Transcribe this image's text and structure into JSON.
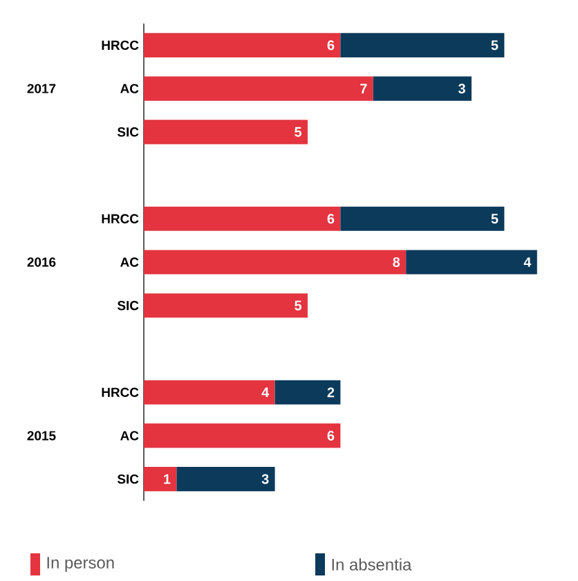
{
  "chart_data": {
    "type": "bar",
    "orientation": "horizontal",
    "stacked": true,
    "data_labels": true,
    "legend": "bottom left",
    "categories": [
      "HRCC",
      "AC",
      "SIC",
      "HRCC",
      "AC",
      "SIC",
      "HRCC",
      "AC",
      "SIC"
    ],
    "annotations": [
      "2017",
      "2016",
      "2015"
    ],
    "series": [
      {
        "name": "In person",
        "color": "#e3343f",
        "values": [
          6,
          7,
          5,
          6,
          8,
          5,
          4,
          6,
          1
        ]
      },
      {
        "name": "In absentia",
        "color": "#0b3a5b",
        "values": [
          5,
          3,
          null,
          5,
          4,
          null,
          2,
          null,
          3
        ]
      }
    ]
  }
}
